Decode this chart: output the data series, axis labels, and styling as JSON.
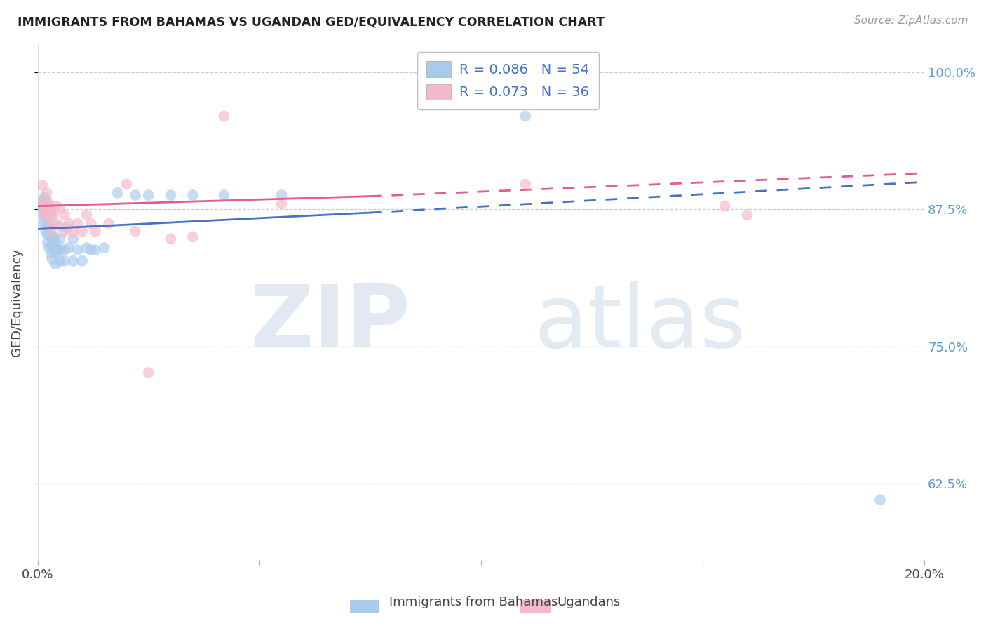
{
  "title": "IMMIGRANTS FROM BAHAMAS VS UGANDAN GED/EQUIVALENCY CORRELATION CHART",
  "source": "Source: ZipAtlas.com",
  "ylabel": "GED/Equivalency",
  "xlim": [
    0.0,
    0.2
  ],
  "ylim": [
    0.555,
    1.025
  ],
  "xticks": [
    0.0,
    0.05,
    0.1,
    0.15,
    0.2
  ],
  "xtick_labels": [
    "0.0%",
    "",
    "",
    "",
    "20.0%"
  ],
  "ytick_labels": [
    "62.5%",
    "75.0%",
    "87.5%",
    "100.0%"
  ],
  "yticks": [
    0.625,
    0.75,
    0.875,
    1.0
  ],
  "blue_label": "Immigrants from Bahamas",
  "pink_label": "Ugandans",
  "blue_R": "0.086",
  "blue_N": "54",
  "pink_R": "0.073",
  "pink_N": "36",
  "blue_color": "#a8caeb",
  "pink_color": "#f4b8c8",
  "blue_line_color": "#4472c4",
  "pink_line_color": "#e85a8a",
  "watermark_zip": "ZIP",
  "watermark_atlas": "atlas",
  "background_color": "#ffffff",
  "blue_line_x0": 0.0,
  "blue_line_y0": 0.857,
  "blue_line_x1": 0.075,
  "blue_line_y1": 0.872,
  "blue_line_x2": 0.2,
  "blue_line_y2": 0.9,
  "pink_line_x0": 0.0,
  "pink_line_y0": 0.878,
  "pink_line_x1": 0.075,
  "pink_line_y1": 0.887,
  "pink_line_x2": 0.2,
  "pink_line_y2": 0.908,
  "blue_x": [
    0.0008,
    0.001,
    0.0012,
    0.0013,
    0.0015,
    0.0015,
    0.0015,
    0.0015,
    0.0018,
    0.002,
    0.002,
    0.002,
    0.002,
    0.0022,
    0.0022,
    0.0025,
    0.0025,
    0.003,
    0.003,
    0.003,
    0.003,
    0.003,
    0.003,
    0.0032,
    0.0035,
    0.0038,
    0.004,
    0.004,
    0.004,
    0.0045,
    0.005,
    0.005,
    0.005,
    0.006,
    0.006,
    0.0065,
    0.007,
    0.008,
    0.008,
    0.009,
    0.01,
    0.011,
    0.012,
    0.013,
    0.015,
    0.018,
    0.022,
    0.025,
    0.03,
    0.035,
    0.042,
    0.055,
    0.11,
    0.19
  ],
  "blue_y": [
    0.873,
    0.877,
    0.883,
    0.862,
    0.868,
    0.875,
    0.88,
    0.886,
    0.855,
    0.86,
    0.87,
    0.876,
    0.883,
    0.845,
    0.852,
    0.84,
    0.858,
    0.835,
    0.842,
    0.85,
    0.86,
    0.87,
    0.877,
    0.83,
    0.84,
    0.85,
    0.825,
    0.835,
    0.845,
    0.838,
    0.828,
    0.838,
    0.848,
    0.828,
    0.838,
    0.858,
    0.84,
    0.828,
    0.848,
    0.838,
    0.828,
    0.84,
    0.838,
    0.838,
    0.84,
    0.89,
    0.888,
    0.888,
    0.888,
    0.888,
    0.888,
    0.888,
    0.96,
    0.61
  ],
  "pink_x": [
    0.001,
    0.001,
    0.0015,
    0.0015,
    0.002,
    0.002,
    0.002,
    0.0025,
    0.003,
    0.003,
    0.003,
    0.0035,
    0.004,
    0.004,
    0.005,
    0.005,
    0.006,
    0.006,
    0.007,
    0.008,
    0.009,
    0.01,
    0.011,
    0.012,
    0.013,
    0.016,
    0.02,
    0.022,
    0.025,
    0.03,
    0.035,
    0.042,
    0.055,
    0.11,
    0.155,
    0.16
  ],
  "pink_y": [
    0.88,
    0.897,
    0.87,
    0.878,
    0.873,
    0.882,
    0.89,
    0.87,
    0.875,
    0.862,
    0.855,
    0.87,
    0.862,
    0.878,
    0.86,
    0.876,
    0.855,
    0.87,
    0.862,
    0.855,
    0.862,
    0.855,
    0.87,
    0.862,
    0.855,
    0.862,
    0.898,
    0.855,
    0.726,
    0.848,
    0.85,
    0.96,
    0.88,
    0.898,
    0.878,
    0.87
  ]
}
